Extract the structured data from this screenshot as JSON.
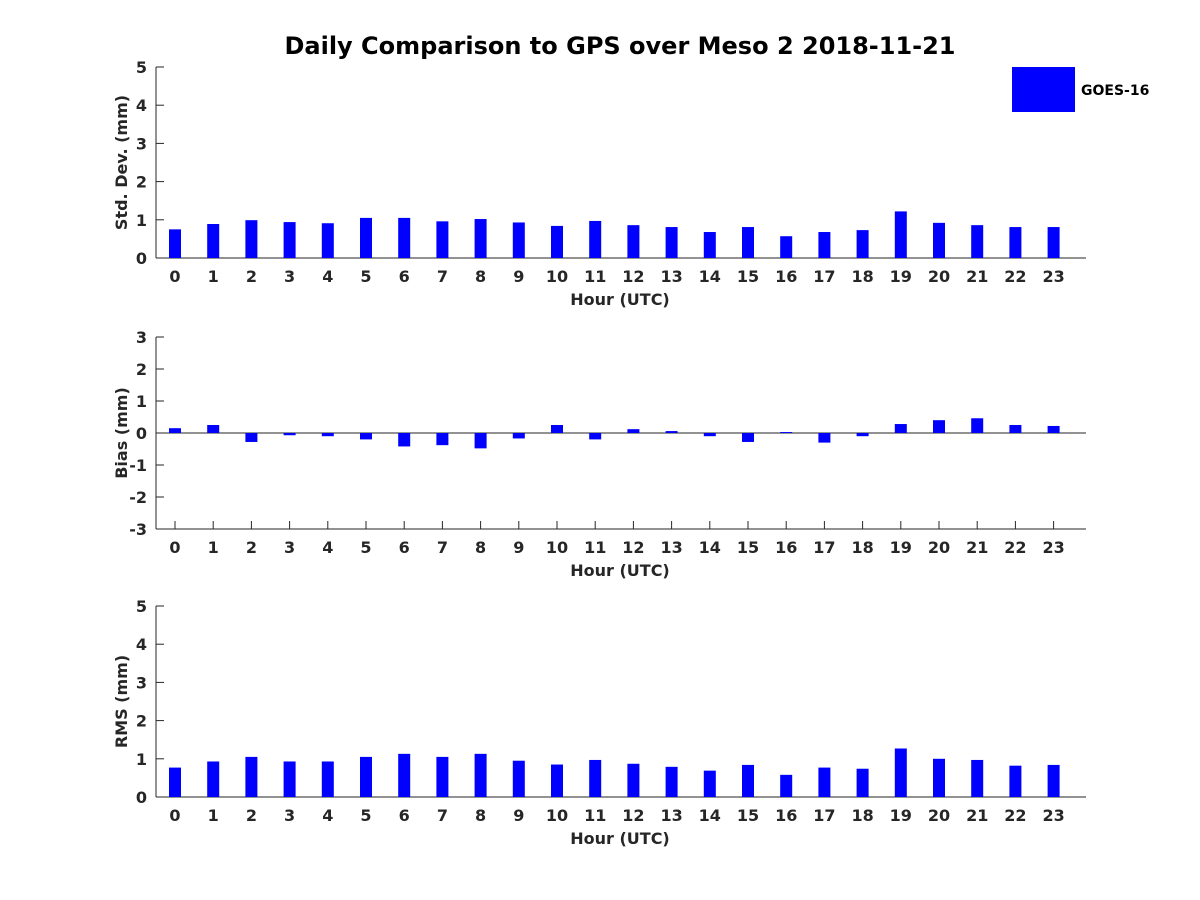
{
  "chart_data": {
    "type": "bar",
    "title": "Daily Comparison to GPS over Meso 2 2018-11-21",
    "legend": {
      "entries": [
        "GOES-16"
      ],
      "position": "top-right"
    },
    "color": "#0000ff",
    "categories": [
      "0",
      "1",
      "2",
      "3",
      "4",
      "5",
      "6",
      "7",
      "8",
      "9",
      "10",
      "11",
      "12",
      "13",
      "14",
      "15",
      "16",
      "17",
      "18",
      "19",
      "20",
      "21",
      "22",
      "23"
    ],
    "panels": [
      {
        "id": "std",
        "xlabel": "Hour (UTC)",
        "ylabel": "Std. Dev. (mm)",
        "ylim": [
          0,
          5
        ],
        "yticks": [
          "0",
          "1",
          "2",
          "3",
          "4",
          "5"
        ],
        "series": [
          {
            "name": "GOES-16",
            "values": [
              0.75,
              0.89,
              0.99,
              0.94,
              0.91,
              1.05,
              1.05,
              0.96,
              1.02,
              0.93,
              0.84,
              0.97,
              0.86,
              0.81,
              0.68,
              0.81,
              0.57,
              0.68,
              0.73,
              1.22,
              0.92,
              0.86,
              0.81,
              0.81
            ]
          }
        ]
      },
      {
        "id": "bias",
        "xlabel": "Hour (UTC)",
        "ylabel": "Bias (mm)",
        "ylim": [
          -3,
          3
        ],
        "yticks": [
          "-3",
          "-2",
          "-1",
          "0",
          "1",
          "2",
          "3"
        ],
        "series": [
          {
            "name": "GOES-16",
            "values": [
              0.15,
              0.25,
              -0.28,
              -0.07,
              -0.1,
              -0.2,
              -0.42,
              -0.38,
              -0.48,
              -0.17,
              0.25,
              -0.2,
              0.12,
              0.06,
              -0.1,
              -0.28,
              0.03,
              -0.3,
              -0.1,
              0.28,
              0.4,
              0.46,
              0.25,
              0.22
            ]
          }
        ]
      },
      {
        "id": "rms",
        "xlabel": "Hour (UTC)",
        "ylabel": "RMS (mm)",
        "ylim": [
          0,
          5
        ],
        "yticks": [
          "0",
          "1",
          "2",
          "3",
          "4",
          "5"
        ],
        "series": [
          {
            "name": "GOES-16",
            "values": [
              0.77,
              0.93,
              1.05,
              0.93,
              0.93,
              1.05,
              1.13,
              1.05,
              1.13,
              0.95,
              0.85,
              0.97,
              0.87,
              0.79,
              0.69,
              0.84,
              0.58,
              0.77,
              0.74,
              1.27,
              1.0,
              0.97,
              0.82,
              0.84
            ]
          }
        ]
      }
    ]
  }
}
